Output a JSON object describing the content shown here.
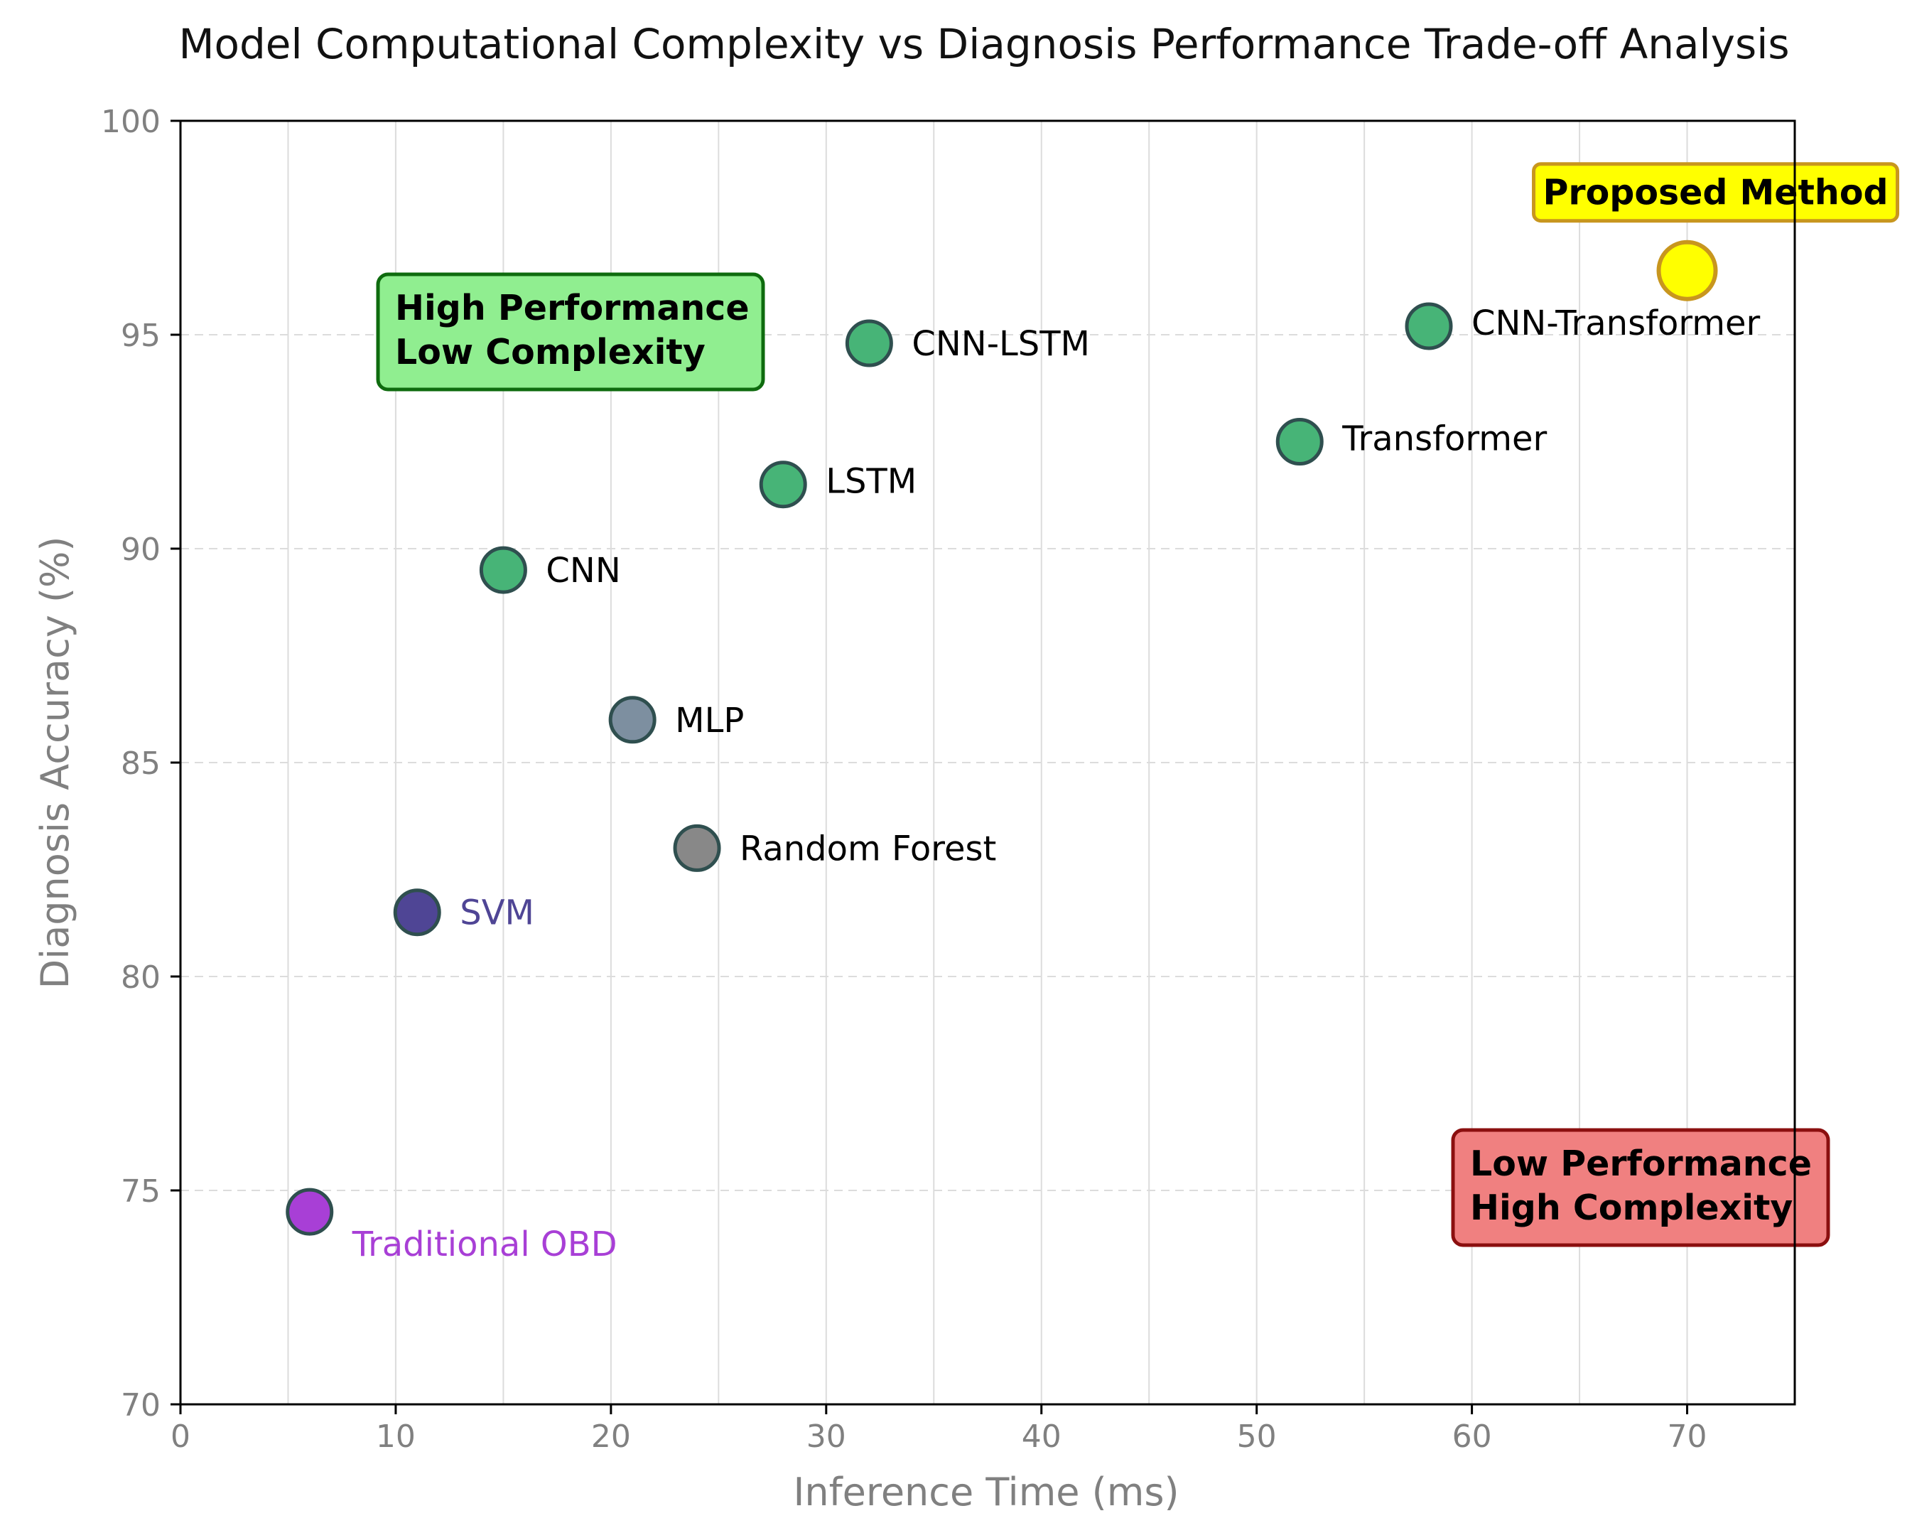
{
  "chart_data": {
    "type": "scatter",
    "title": "Model Computational Complexity vs Diagnosis Performance Trade-off Analysis",
    "xlabel": "Inference Time (ms)",
    "ylabel": "Diagnosis Accuracy (%)",
    "xlim": [
      0,
      75
    ],
    "ylim": [
      70,
      100
    ],
    "xticks": [
      0,
      10,
      20,
      30,
      40,
      50,
      60,
      70
    ],
    "yticks": [
      70,
      75,
      80,
      85,
      90,
      95,
      100
    ],
    "grid": true,
    "points": [
      {
        "label": "Traditional OBD",
        "x": 6,
        "y": 74.5,
        "color": "#a83fd6",
        "label_color": "#a83fd6"
      },
      {
        "label": "SVM",
        "x": 11,
        "y": 81.5,
        "color": "#4f4595",
        "label_color": "#4f4595"
      },
      {
        "label": "Random Forest",
        "x": 24,
        "y": 83,
        "color": "#888888",
        "label_color": "#000000"
      },
      {
        "label": "MLP",
        "x": 21,
        "y": 86,
        "color": "#7d8fa0",
        "label_color": "#000000"
      },
      {
        "label": "CNN",
        "x": 15,
        "y": 89.5,
        "color": "#47b477",
        "label_color": "#000000"
      },
      {
        "label": "LSTM",
        "x": 28,
        "y": 91.5,
        "color": "#47b477",
        "label_color": "#000000"
      },
      {
        "label": "CNN-LSTM",
        "x": 32,
        "y": 94.8,
        "color": "#47b477",
        "label_color": "#000000"
      },
      {
        "label": "Transformer",
        "x": 52,
        "y": 92.5,
        "color": "#47b477",
        "label_color": "#000000"
      },
      {
        "label": "CNN-Transformer",
        "x": 58,
        "y": 95.2,
        "color": "#47b477",
        "label_color": "#000000"
      },
      {
        "label": "Proposed Method",
        "x": 70,
        "y": 96.5,
        "color": "#ffff00",
        "label_color": "#000000",
        "highlight": true,
        "edge_color": "#c8961e"
      }
    ],
    "annotations": [
      {
        "lines": [
          "High Performance",
          "Low Complexity"
        ],
        "fill": "#90ee90",
        "edge": "#0e6b0e",
        "anchor": "upper-left"
      },
      {
        "lines": [
          "Low Performance",
          "High Complexity"
        ],
        "fill": "#f08080",
        "edge": "#8b0f0f",
        "anchor": "lower-right"
      }
    ]
  }
}
